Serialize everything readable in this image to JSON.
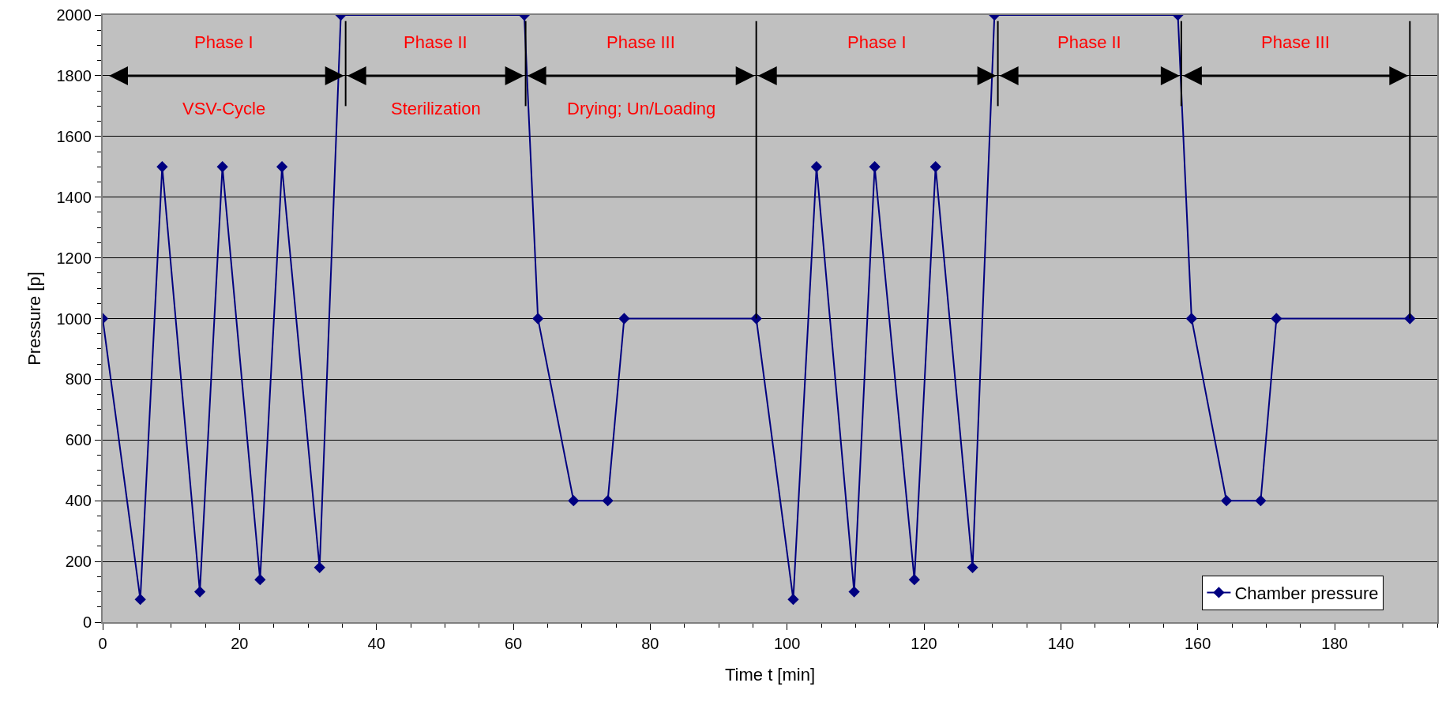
{
  "chart_data": {
    "type": "line",
    "xlabel": "Time t [min]",
    "ylabel": "Pressure [p]",
    "x": [
      0,
      5.5,
      8.7,
      14.2,
      17.5,
      23,
      26.2,
      31.7,
      34.8,
      61.6,
      63.6,
      68.8,
      73.8,
      76.2,
      95.5,
      100.9,
      104.3,
      109.8,
      112.8,
      118.6,
      121.7,
      127.1,
      130.3,
      157.1,
      159.1,
      164.2,
      169.2,
      171.5,
      191
    ],
    "series": [
      {
        "name": "Chamber pressure",
        "color": "#000080",
        "values": [
          1000,
          75,
          1500,
          100,
          1500,
          140,
          1500,
          180,
          2000,
          2000,
          1000,
          400,
          400,
          1000,
          1000,
          75,
          1500,
          100,
          1500,
          140,
          1500,
          180,
          2000,
          2000,
          1000,
          400,
          400,
          1000,
          1000
        ]
      }
    ],
    "xlim": [
      0,
      195
    ],
    "xticks": [
      0,
      20,
      40,
      60,
      80,
      100,
      120,
      140,
      160,
      180
    ],
    "ylim": [
      0,
      2000
    ],
    "yticks": [
      0,
      200,
      400,
      600,
      800,
      1000,
      1200,
      1400,
      1600,
      1800,
      2000
    ],
    "grid": "y",
    "legend": "bottom right",
    "marker": "diamond",
    "line_style": "solid",
    "ref_lines": [
      {
        "axis": "x",
        "value": 35.5,
        "color": "#000000"
      },
      {
        "axis": "x",
        "value": 61.8,
        "color": "#000000"
      },
      {
        "axis": "x",
        "value": 95.5,
        "color": "#000000"
      },
      {
        "axis": "x",
        "value": 130.8,
        "color": "#000000"
      },
      {
        "axis": "x",
        "value": 157.6,
        "color": "#000000"
      },
      {
        "axis": "x",
        "value": 191,
        "color": "#000000"
      }
    ],
    "annotations": [
      "Phase I",
      "Phase II",
      "Phase III",
      "Phase I",
      "Phase II",
      "Phase III",
      "VSV-Cycle",
      "Sterilization",
      "Drying; Un/Loading"
    ]
  }
}
